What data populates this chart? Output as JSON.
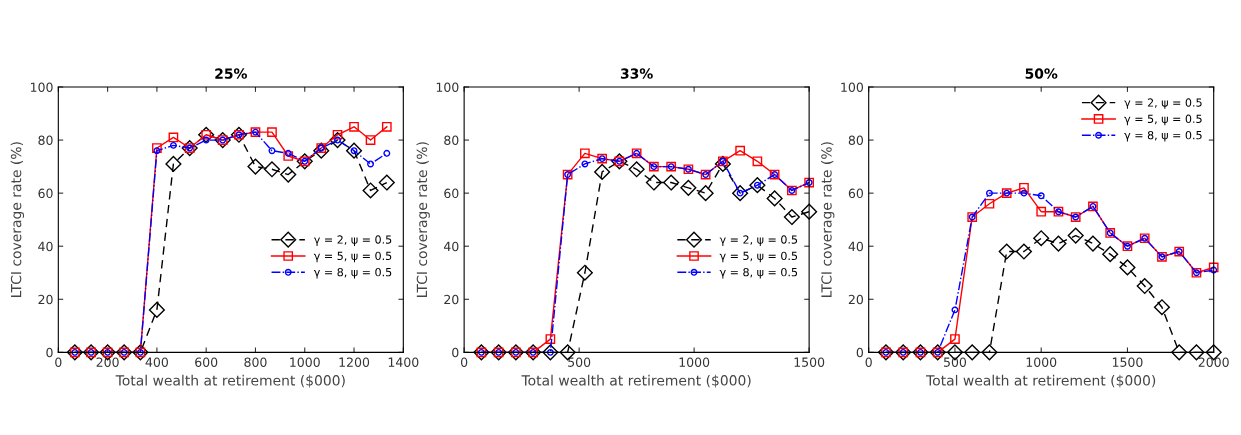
{
  "chart_data": [
    {
      "type": "line",
      "title": "25%",
      "xlabel": "Total wealth at retirement ($000)",
      "ylabel": "LTCI coverage rate (%)",
      "xlim": [
        0,
        1400
      ],
      "ylim": [
        0,
        100
      ],
      "xticks": [
        0,
        200,
        400,
        600,
        800,
        1000,
        1200,
        1400
      ],
      "yticks": [
        0,
        20,
        40,
        60,
        80,
        100
      ],
      "grid": false,
      "legend": "right",
      "x": [
        67,
        133,
        200,
        267,
        333,
        400,
        467,
        533,
        600,
        667,
        733,
        800,
        867,
        933,
        1000,
        1067,
        1133,
        1200,
        1267,
        1333
      ],
      "series": [
        {
          "name": "γ = 2, ψ = 0.5",
          "color": "#000000",
          "marker": "diamond",
          "line_style": "dashed",
          "values": [
            0,
            0,
            0,
            0,
            0,
            16,
            71,
            77,
            82,
            80,
            82,
            70,
            69,
            67,
            72,
            76,
            80,
            76,
            61,
            64
          ]
        },
        {
          "name": "γ = 5, ψ = 0.5",
          "color": "#ff0000",
          "marker": "square",
          "line_style": "solid",
          "values": [
            0,
            0,
            0,
            0,
            0,
            77,
            81,
            77,
            82,
            80,
            82,
            83,
            83,
            74,
            72,
            77,
            82,
            85,
            80,
            85
          ]
        },
        {
          "name": "γ = 8, ψ = 0.5",
          "color": "#0000ff",
          "marker": "circle",
          "line_style": "dashdot",
          "values": [
            0,
            0,
            0,
            0,
            0,
            76,
            78,
            77,
            80,
            80,
            82,
            83,
            76,
            75,
            72,
            77,
            80,
            76,
            71,
            75
          ]
        }
      ]
    },
    {
      "type": "line",
      "title": "33%",
      "xlabel": "Total wealth at retirement ($000)",
      "ylabel": "LTCI coverage rate (%)",
      "xlim": [
        0,
        1500
      ],
      "ylim": [
        0,
        100
      ],
      "xticks": [
        0,
        500,
        1000,
        1500
      ],
      "yticks": [
        0,
        20,
        40,
        60,
        80,
        100
      ],
      "grid": false,
      "legend": "right",
      "x": [
        75,
        150,
        225,
        300,
        375,
        450,
        525,
        600,
        675,
        750,
        825,
        900,
        975,
        1050,
        1125,
        1200,
        1275,
        1350,
        1425,
        1500
      ],
      "series": [
        {
          "name": "γ = 2, ψ = 0.5",
          "color": "#000000",
          "marker": "diamond",
          "line_style": "dashed",
          "values": [
            0,
            0,
            0,
            0,
            0,
            0,
            30,
            68,
            72,
            69,
            64,
            64,
            62,
            60,
            71,
            60,
            63,
            58,
            51,
            53
          ]
        },
        {
          "name": "γ = 5, ψ = 0.5",
          "color": "#ff0000",
          "marker": "square",
          "line_style": "solid",
          "values": [
            0,
            0,
            0,
            0,
            5,
            67,
            75,
            73,
            72,
            75,
            70,
            70,
            69,
            67,
            72,
            76,
            72,
            67,
            61,
            64
          ]
        },
        {
          "name": "γ = 8, ψ = 0.5",
          "color": "#0000ff",
          "marker": "circle",
          "line_style": "dashdot",
          "values": [
            0,
            0,
            0,
            0,
            0,
            67,
            71,
            73,
            72,
            75,
            70,
            70,
            69,
            67,
            72,
            60,
            63,
            67,
            61,
            64
          ]
        }
      ]
    },
    {
      "type": "line",
      "title": "50%",
      "xlabel": "Total wealth at retirement ($000)",
      "ylabel": "LTCI coverage rate (%)",
      "xlim": [
        0,
        2000
      ],
      "ylim": [
        0,
        100
      ],
      "xticks": [
        0,
        500,
        1000,
        1500,
        2000
      ],
      "yticks": [
        0,
        20,
        40,
        60,
        80,
        100
      ],
      "grid": false,
      "legend": "top right",
      "x": [
        100,
        200,
        300,
        400,
        500,
        600,
        700,
        800,
        900,
        1000,
        1100,
        1200,
        1300,
        1400,
        1500,
        1600,
        1700,
        1800,
        1900,
        2000
      ],
      "series": [
        {
          "name": "γ = 2, ψ = 0.5",
          "color": "#000000",
          "marker": "diamond",
          "line_style": "dashed",
          "values": [
            0,
            0,
            0,
            0,
            0,
            0,
            0,
            38,
            38,
            43,
            41,
            44,
            41,
            37,
            32,
            25,
            17,
            0,
            0,
            0
          ]
        },
        {
          "name": "γ = 5, ψ = 0.5",
          "color": "#ff0000",
          "marker": "square",
          "line_style": "solid",
          "values": [
            0,
            0,
            0,
            0,
            5,
            51,
            56,
            60,
            62,
            53,
            53,
            51,
            55,
            45,
            40,
            43,
            36,
            38,
            30,
            32
          ]
        },
        {
          "name": "γ = 8, ψ = 0.5",
          "color": "#0000ff",
          "marker": "circle",
          "line_style": "dashdot",
          "values": [
            0,
            0,
            0,
            0,
            16,
            51,
            60,
            60,
            60,
            59,
            53,
            51,
            55,
            45,
            40,
            43,
            36,
            38,
            30,
            31
          ]
        }
      ]
    }
  ]
}
